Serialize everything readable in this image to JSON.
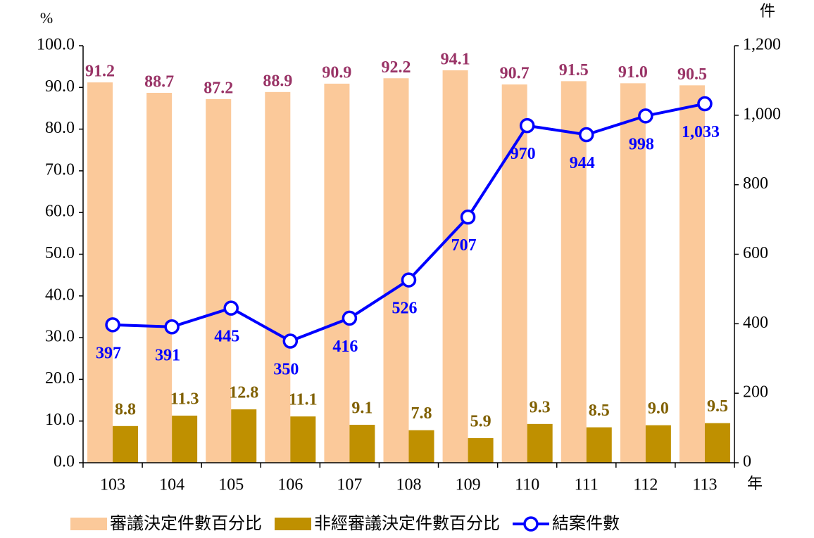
{
  "chart_data": {
    "type": "bar_line",
    "y_label": "%",
    "y2_label": "件",
    "x_label": "年",
    "categories": [
      "103",
      "104",
      "105",
      "106",
      "107",
      "108",
      "109",
      "110",
      "111",
      "112",
      "113"
    ],
    "series": [
      {
        "name": "審議決定件數百分比",
        "type": "bar",
        "color": "#FBC99A",
        "label_color": "#993366",
        "values": [
          91.2,
          88.7,
          87.2,
          88.9,
          90.9,
          92.2,
          94.1,
          90.7,
          91.5,
          91.0,
          90.5
        ],
        "value_labels": [
          "91.2",
          "88.7",
          "87.2",
          "88.9",
          "90.9",
          "92.2",
          "94.1",
          "90.7",
          "91.5",
          "91.0",
          "90.5"
        ]
      },
      {
        "name": "非經審議決定件數百分比",
        "type": "bar",
        "color": "#BF9000",
        "label_color": "#806000",
        "values": [
          8.8,
          11.3,
          12.8,
          11.1,
          9.1,
          7.8,
          5.9,
          9.3,
          8.5,
          9.0,
          9.5
        ],
        "value_labels": [
          "8.8",
          "11.3",
          "12.8",
          "11.1",
          "9.1",
          "7.8",
          "5.9",
          "9.3",
          "8.5",
          "9.0",
          "9.5"
        ]
      },
      {
        "name": "結案件數",
        "type": "line",
        "axis": "y2",
        "color": "#0000FF",
        "label_color": "#0000FF",
        "values": [
          397,
          391,
          445,
          350,
          416,
          526,
          707,
          970,
          944,
          998,
          1033
        ],
        "value_labels": [
          "397",
          "391",
          "445",
          "350",
          "416",
          "526",
          "707",
          "970",
          "944",
          "998",
          "1,033"
        ]
      }
    ],
    "ylim": [
      0,
      100
    ],
    "yticks": [
      {
        "value": 0,
        "label": "0.0"
      },
      {
        "value": 10,
        "label": "10.0"
      },
      {
        "value": 20,
        "label": "20.0"
      },
      {
        "value": 30,
        "label": "30.0"
      },
      {
        "value": 40,
        "label": "40.0"
      },
      {
        "value": 50,
        "label": "50.0"
      },
      {
        "value": 60,
        "label": "60.0"
      },
      {
        "value": 70,
        "label": "70.0"
      },
      {
        "value": 80,
        "label": "80.0"
      },
      {
        "value": 90,
        "label": "90.0"
      },
      {
        "value": 100,
        "label": "100.0"
      }
    ],
    "y2lim": [
      0,
      1200
    ],
    "y2ticks": [
      0,
      200,
      400,
      600,
      800,
      {
        "value": 1000,
        "label": "1,000"
      },
      {
        "value": 1200,
        "label": "1,200"
      }
    ],
    "grid": false,
    "legend": "bottom"
  }
}
